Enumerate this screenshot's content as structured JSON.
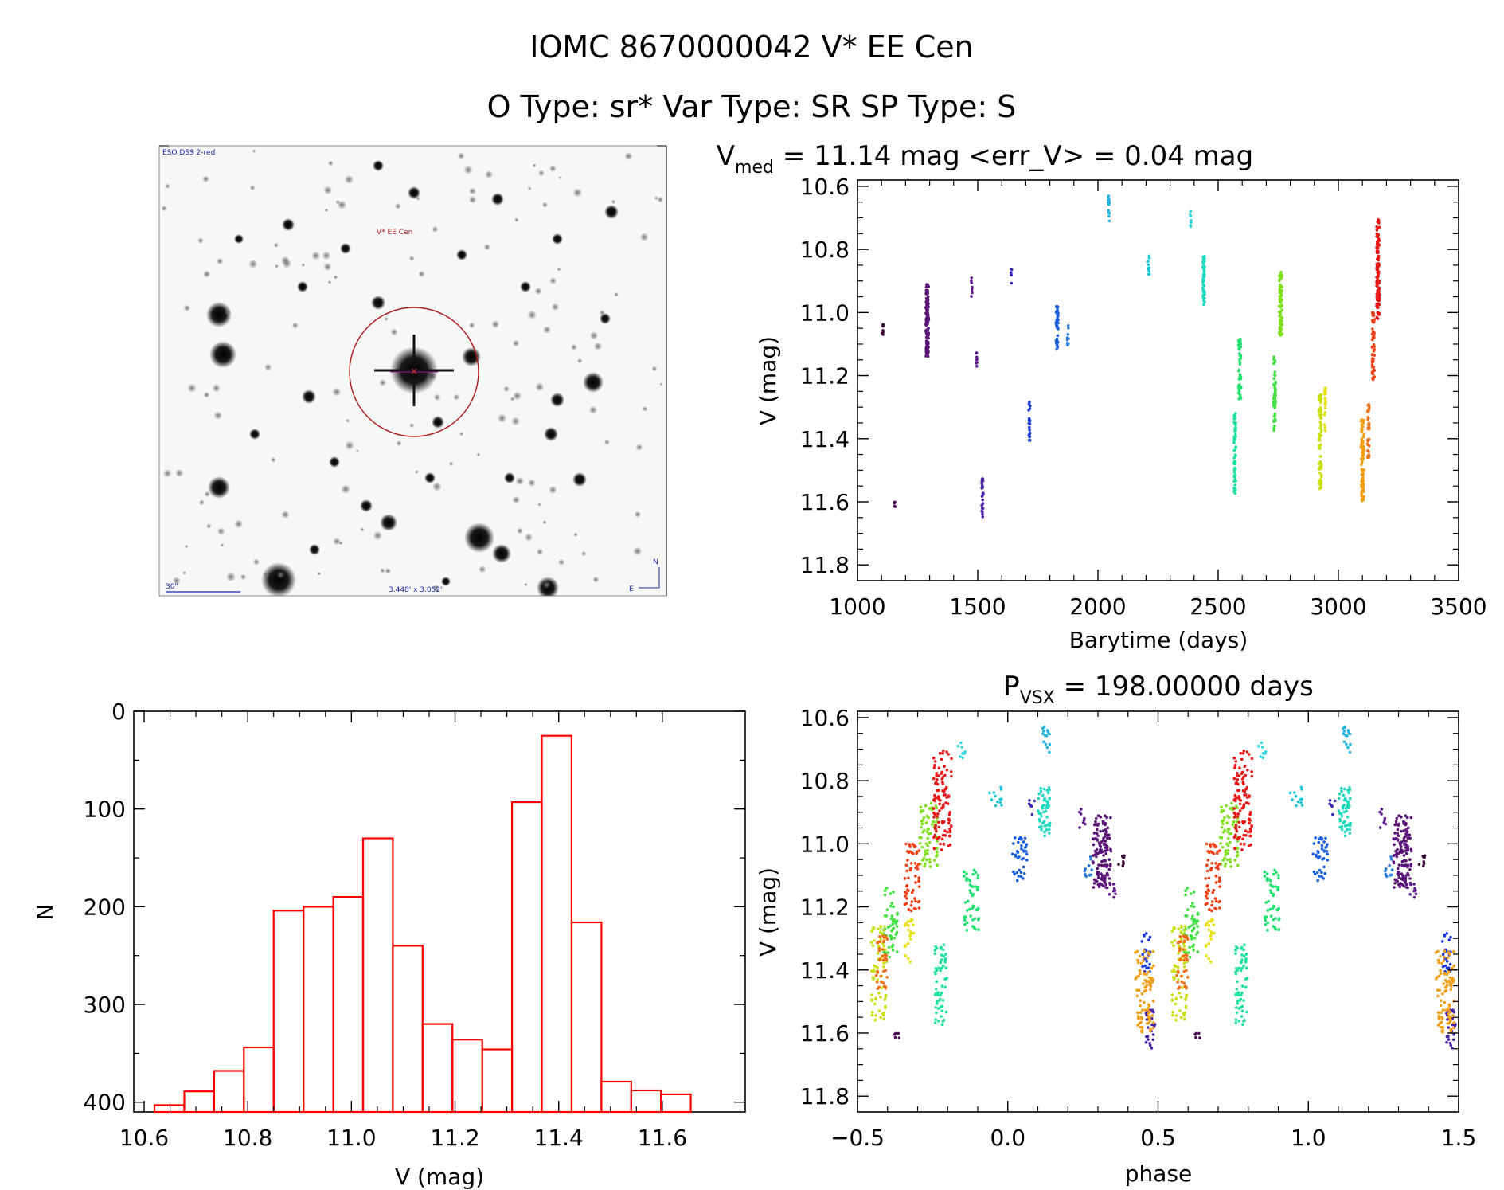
{
  "header": {
    "title_line1": "IOMC 8670000042    V* EE Cen",
    "title_line2": "O Type: sr*   Var Type: SR   SP Type: S"
  },
  "image_panel": {
    "survey_label": "ESO DSS 2-red",
    "target_label": "V* EE Cen",
    "scale_label": "30\"",
    "size_label": "3.448' x 3.052'",
    "north_label": "N",
    "east_label": "E"
  },
  "colors": {
    "hist": "#ff0000",
    "target_circle": "#b01818",
    "label_blue": "#1a2aa8"
  },
  "chart_data": [
    {
      "type": "scatter",
      "name": "light-curve",
      "title_main": "V",
      "title_sub": "med",
      "title_rest": " = 11.14 mag <err_V> = 0.04 mag",
      "xlabel": "Barytime (days)",
      "ylabel": "V (mag)",
      "xlim": [
        1000,
        3500
      ],
      "ylim": [
        11.85,
        10.58
      ],
      "xticks": [
        1000,
        1500,
        2000,
        2500,
        3000,
        3500
      ],
      "xtick_labels": [
        "1000",
        "1500",
        "2000",
        "2500",
        "3000",
        "3500"
      ],
      "yticks": [
        10.6,
        10.8,
        11.0,
        11.2,
        11.4,
        11.6,
        11.8
      ],
      "ytick_labels": [
        "10.6",
        "10.8",
        "11.0",
        "11.2",
        "11.4",
        "11.6",
        "11.8"
      ],
      "segments": [
        {
          "t": 1105,
          "dt": 6,
          "v0": 11.03,
          "v1": 11.07,
          "n": 8,
          "color": "#3d0a3a"
        },
        {
          "t": 1155,
          "dt": 4,
          "v0": 11.59,
          "v1": 11.62,
          "n": 5,
          "color": "#4a0e52"
        },
        {
          "t": 1290,
          "dt": 12,
          "v0": 10.91,
          "v1": 11.14,
          "n": 140,
          "color": "#5a1478"
        },
        {
          "t": 1475,
          "dt": 4,
          "v0": 10.89,
          "v1": 10.95,
          "n": 8,
          "color": "#5c1a8c"
        },
        {
          "t": 1495,
          "dt": 4,
          "v0": 11.12,
          "v1": 11.18,
          "n": 8,
          "color": "#5c1a8c"
        },
        {
          "t": 1520,
          "dt": 6,
          "v0": 11.52,
          "v1": 11.65,
          "n": 25,
          "color": "#4a22a8"
        },
        {
          "t": 1640,
          "dt": 4,
          "v0": 10.86,
          "v1": 10.91,
          "n": 6,
          "color": "#3a2ab8"
        },
        {
          "t": 1715,
          "dt": 6,
          "v0": 11.28,
          "v1": 11.41,
          "n": 25,
          "color": "#1e3ad8"
        },
        {
          "t": 1830,
          "dt": 10,
          "v0": 10.98,
          "v1": 11.12,
          "n": 40,
          "color": "#1a5ee0"
        },
        {
          "t": 1875,
          "dt": 6,
          "v0": 11.04,
          "v1": 11.11,
          "n": 12,
          "color": "#2a7ad8"
        },
        {
          "t": 2045,
          "dt": 6,
          "v0": 10.62,
          "v1": 10.71,
          "n": 14,
          "color": "#25b4e0"
        },
        {
          "t": 2210,
          "dt": 8,
          "v0": 10.82,
          "v1": 10.88,
          "n": 12,
          "color": "#20c8d8"
        },
        {
          "t": 2385,
          "dt": 6,
          "v0": 10.67,
          "v1": 10.73,
          "n": 8,
          "color": "#30d8e0"
        },
        {
          "t": 2440,
          "dt": 8,
          "v0": 10.82,
          "v1": 10.98,
          "n": 50,
          "color": "#20d8c0"
        },
        {
          "t": 2570,
          "dt": 8,
          "v0": 11.32,
          "v1": 11.59,
          "n": 60,
          "color": "#20e0a0"
        },
        {
          "t": 2590,
          "dt": 10,
          "v0": 11.08,
          "v1": 11.28,
          "n": 50,
          "color": "#20e070"
        },
        {
          "t": 2735,
          "dt": 10,
          "v0": 11.14,
          "v1": 11.38,
          "n": 50,
          "color": "#40e040"
        },
        {
          "t": 2760,
          "dt": 12,
          "v0": 10.87,
          "v1": 11.08,
          "n": 70,
          "color": "#80e020"
        },
        {
          "t": 2925,
          "dt": 10,
          "v0": 11.26,
          "v1": 11.56,
          "n": 70,
          "color": "#c8e010"
        },
        {
          "t": 2945,
          "dt": 6,
          "v0": 11.23,
          "v1": 11.38,
          "n": 20,
          "color": "#e8e010"
        },
        {
          "t": 3100,
          "dt": 12,
          "v0": 11.34,
          "v1": 11.62,
          "n": 90,
          "color": "#f0a018"
        },
        {
          "t": 3125,
          "dt": 8,
          "v0": 11.29,
          "v1": 11.46,
          "n": 40,
          "color": "#f07018"
        },
        {
          "t": 3145,
          "dt": 10,
          "v0": 11.0,
          "v1": 11.22,
          "n": 60,
          "color": "#f04018"
        },
        {
          "t": 3165,
          "dt": 12,
          "v0": 10.7,
          "v1": 11.02,
          "n": 110,
          "color": "#e81818"
        }
      ]
    },
    {
      "type": "bar",
      "name": "histogram",
      "xlabel": "V (mag)",
      "ylabel": "N",
      "xlim": [
        10.58,
        11.76
      ],
      "ylim": [
        0,
        410
      ],
      "xticks": [
        10.6,
        10.8,
        11.0,
        11.2,
        11.4,
        11.6
      ],
      "xtick_labels": [
        "10.6",
        "10.8",
        "11.0",
        "11.2",
        "11.4",
        "11.6"
      ],
      "yticks": [
        0,
        100,
        200,
        300,
        400
      ],
      "ytick_labels": [
        "0",
        "100",
        "200",
        "300",
        "400"
      ],
      "bin_width": 0.0575,
      "bin_starts": [
        10.62,
        10.6775,
        10.735,
        10.7925,
        10.85,
        10.9075,
        10.965,
        11.0225,
        11.08,
        11.1375,
        11.195,
        11.2525,
        11.31,
        11.3675,
        11.425,
        11.4825,
        11.54,
        11.5975,
        11.655
      ],
      "values": [
        7,
        21,
        42,
        66,
        206,
        210,
        220,
        280,
        170,
        90,
        74,
        64,
        317,
        385,
        194,
        31,
        22,
        18,
        0
      ]
    },
    {
      "type": "scatter",
      "name": "phase-curve",
      "title_main": "P",
      "title_sub": "VSX",
      "title_rest": " = 198.00000 days",
      "xlabel": "phase",
      "ylabel": "V (mag)",
      "xlim": [
        -0.5,
        1.5
      ],
      "ylim": [
        11.85,
        10.58
      ],
      "xticks": [
        -0.5,
        0.0,
        0.5,
        1.0,
        1.5
      ],
      "xtick_labels": [
        "−0.5",
        "0.0",
        "0.5",
        "1.0",
        "1.5"
      ],
      "yticks": [
        10.6,
        10.8,
        11.0,
        11.2,
        11.4,
        11.6,
        11.8
      ],
      "ytick_labels": [
        "10.6",
        "10.8",
        "11.0",
        "11.2",
        "11.4",
        "11.6",
        "11.8"
      ]
    }
  ]
}
